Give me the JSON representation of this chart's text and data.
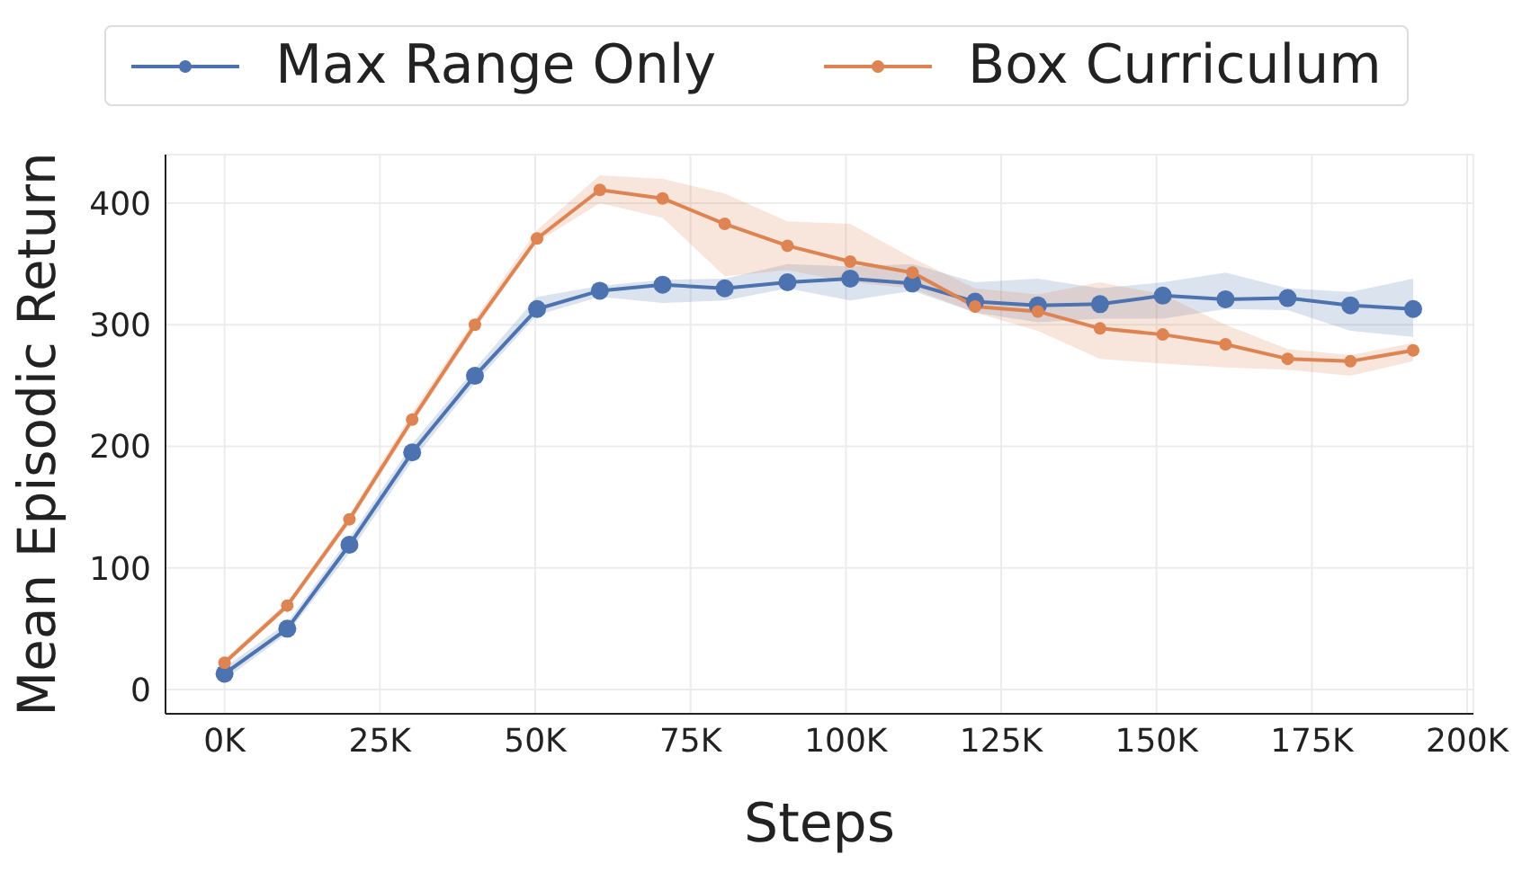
{
  "chart_data": {
    "type": "line",
    "xlabel": "Steps",
    "ylabel": "Mean Episodic Return",
    "x": [
      0,
      10.1,
      20.1,
      30.2,
      40.3,
      50.3,
      60.4,
      70.5,
      80.5,
      90.6,
      100.7,
      110.7,
      120.8,
      130.9,
      140.9,
      151,
      161.1,
      171.1,
      181.2,
      191.3
    ],
    "series": [
      {
        "name": "Max Range Only",
        "color": "#4c72b0",
        "values": [
          13,
          50,
          119,
          195,
          258,
          313,
          328,
          333,
          330,
          335,
          338,
          334,
          319,
          316,
          317,
          324,
          321,
          322,
          316,
          313
        ],
        "lower": [
          8,
          46,
          112,
          188,
          252,
          308,
          323,
          318,
          320,
          330,
          320,
          328,
          310,
          302,
          305,
          305,
          313,
          312,
          295,
          290
        ],
        "upper": [
          18,
          55,
          125,
          202,
          264,
          323,
          332,
          337,
          338,
          350,
          348,
          350,
          335,
          338,
          330,
          335,
          343,
          330,
          327,
          338
        ]
      },
      {
        "name": "Box Curriculum",
        "color": "#dd8452",
        "values": [
          22,
          69,
          140,
          222,
          300,
          371,
          411,
          404,
          383,
          365,
          352,
          343,
          315,
          311,
          297,
          292,
          284,
          272,
          270,
          279
        ],
        "lower": [
          20,
          66,
          136,
          218,
          296,
          368,
          400,
          388,
          340,
          345,
          335,
          330,
          310,
          295,
          272,
          268,
          265,
          263,
          258,
          270
        ],
        "upper": [
          25,
          72,
          144,
          228,
          305,
          378,
          423,
          420,
          408,
          385,
          383,
          355,
          330,
          325,
          335,
          325,
          300,
          280,
          275,
          285
        ]
      }
    ],
    "xlim": [
      -9.5,
      201
    ],
    "xticks": [
      {
        "value": 0,
        "label": "0K"
      },
      {
        "value": 25,
        "label": "25K"
      },
      {
        "value": 50,
        "label": "50K"
      },
      {
        "value": 75,
        "label": "75K"
      },
      {
        "value": 100,
        "label": "100K"
      },
      {
        "value": 125,
        "label": "125K"
      },
      {
        "value": 150,
        "label": "150K"
      },
      {
        "value": 175,
        "label": "175K"
      },
      {
        "value": 200,
        "label": "200K"
      }
    ],
    "ylim": [
      -20,
      440
    ],
    "yticks": [
      0,
      100,
      200,
      300,
      400
    ],
    "grid": true,
    "legend": "top",
    "marker": "circle",
    "line_style": "solid"
  }
}
